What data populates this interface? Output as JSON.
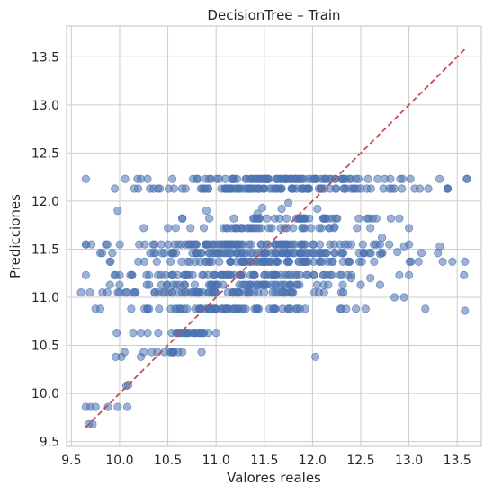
{
  "chart_data": {
    "type": "scatter",
    "title": "DecisionTree – Train",
    "xlabel": "Valores reales",
    "ylabel": "Predicciones",
    "xlim": [
      9.45,
      13.75
    ],
    "ylim": [
      9.45,
      13.82
    ],
    "xticks": [
      "9.5",
      "10.0",
      "10.5",
      "11.0",
      "11.5",
      "12.0",
      "12.5",
      "13.0",
      "13.5"
    ],
    "yticks": [
      "9.5",
      "10.0",
      "10.5",
      "11.0",
      "11.5",
      "12.0",
      "12.5",
      "13.0",
      "13.5"
    ],
    "grid": true,
    "colors": {
      "points": "#4c72b0",
      "reference_line": "#c44e52",
      "grid": "#cccccc"
    },
    "point_opacity": 0.55,
    "reference_line": {
      "style": "dashed",
      "from": [
        9.65,
        9.65
      ],
      "to": [
        13.6,
        13.6
      ]
    },
    "prediction_levels": [
      {
        "y": 12.23,
        "x_range": [
          9.65,
          13.6
        ],
        "count": 90
      },
      {
        "y": 12.13,
        "x_range": [
          9.95,
          13.4
        ],
        "count": 95
      },
      {
        "y": 11.82,
        "x_range": [
          10.65,
          12.9
        ],
        "count": 40
      },
      {
        "y": 11.72,
        "x_range": [
          10.5,
          12.6
        ],
        "count": 40
      },
      {
        "y": 11.55,
        "x_range": [
          9.65,
          13.0
        ],
        "count": 95
      },
      {
        "y": 11.46,
        "x_range": [
          9.8,
          13.3
        ],
        "count": 95
      },
      {
        "y": 11.37,
        "x_range": [
          9.9,
          13.1
        ],
        "count": 75
      },
      {
        "y": 11.23,
        "x_range": [
          9.65,
          12.9
        ],
        "count": 80
      },
      {
        "y": 11.13,
        "x_range": [
          9.9,
          12.5
        ],
        "count": 55
      },
      {
        "y": 11.05,
        "x_range": [
          9.6,
          12.3
        ],
        "count": 70
      },
      {
        "y": 10.88,
        "x_range": [
          9.75,
          12.3
        ],
        "count": 75
      },
      {
        "y": 10.63,
        "x_range": [
          10.4,
          11.0
        ],
        "count": 25
      },
      {
        "y": 10.43,
        "x_range": [
          10.25,
          10.65
        ],
        "count": 12
      }
    ],
    "points": [
      [
        9.68,
        9.68
      ],
      [
        9.72,
        9.68
      ],
      [
        9.65,
        9.86
      ],
      [
        9.7,
        9.86
      ],
      [
        9.75,
        9.86
      ],
      [
        9.88,
        9.86
      ],
      [
        9.98,
        9.86
      ],
      [
        10.08,
        9.86
      ],
      [
        10.09,
        10.09
      ],
      [
        10.07,
        10.08
      ],
      [
        10.02,
        10.38
      ],
      [
        9.96,
        10.38
      ],
      [
        10.14,
        10.63
      ],
      [
        10.22,
        10.63
      ],
      [
        10.29,
        10.63
      ],
      [
        10.85,
        10.43
      ],
      [
        12.03,
        10.38
      ],
      [
        10.22,
        10.38
      ],
      [
        9.97,
        10.63
      ],
      [
        10.05,
        10.43
      ],
      [
        12.85,
        11.0
      ],
      [
        12.95,
        11.0
      ],
      [
        13.17,
        10.88
      ],
      [
        13.58,
        10.86
      ],
      [
        13.57,
        11.23
      ],
      [
        13.45,
        11.37
      ],
      [
        13.35,
        11.37
      ],
      [
        13.0,
        11.23
      ],
      [
        13.58,
        11.37
      ],
      [
        13.32,
        11.53
      ],
      [
        13.0,
        11.72
      ],
      [
        12.72,
        11.62
      ],
      [
        12.48,
        11.82
      ],
      [
        12.05,
        11.92
      ],
      [
        11.75,
        11.98
      ],
      [
        11.48,
        11.93
      ],
      [
        11.68,
        11.92
      ],
      [
        11.43,
        11.87
      ],
      [
        12.23,
        11.73
      ],
      [
        10.65,
        11.82
      ],
      [
        10.25,
        11.72
      ],
      [
        9.98,
        11.9
      ],
      [
        10.9,
        11.9
      ],
      [
        12.95,
        11.53
      ],
      [
        12.7,
        11.45
      ],
      [
        12.7,
        11.13
      ],
      [
        12.6,
        11.2
      ],
      [
        12.4,
        11.2
      ],
      [
        12.35,
        10.88
      ],
      [
        12.45,
        10.88
      ],
      [
        12.55,
        10.88
      ],
      [
        12.32,
        11.05
      ],
      [
        12.12,
        11.05
      ],
      [
        12.2,
        11.23
      ],
      [
        12.88,
        11.47
      ],
      [
        13.02,
        11.37
      ],
      [
        12.4,
        12.13
      ],
      [
        13.2,
        12.13
      ],
      [
        13.4,
        12.13
      ],
      [
        13.6,
        12.23
      ]
    ]
  }
}
